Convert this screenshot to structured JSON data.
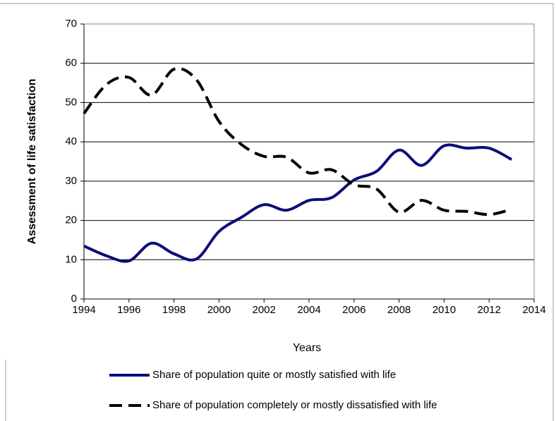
{
  "chart_data": {
    "type": "line",
    "x_label": "Years",
    "y_label": "Assessment of life satisfaction",
    "x": [
      1994,
      1995,
      1996,
      1997,
      1998,
      1999,
      2000,
      2001,
      2002,
      2003,
      2004,
      2005,
      2006,
      2007,
      2008,
      2009,
      2010,
      2011,
      2012,
      2013
    ],
    "series": [
      {
        "name": "Share of population quite or mostly satisfied with life",
        "color": "#0d0d7a",
        "dash": false,
        "values": [
          13.5,
          11,
          9.7,
          14.2,
          11.5,
          10.2,
          17.2,
          20.8,
          24,
          22.6,
          25.1,
          25.8,
          30.3,
          32.5,
          37.9,
          34,
          39,
          38.4,
          38.4,
          35.5
        ]
      },
      {
        "name": "Share of population completely or mostly dissatisfied with life",
        "color": "#000000",
        "dash": true,
        "values": [
          47.2,
          54.6,
          56.4,
          51.9,
          58.5,
          55.8,
          45.2,
          39.3,
          36.3,
          36.1,
          32.1,
          32.9,
          29.1,
          28,
          22.1,
          25.1,
          22.6,
          22.3,
          21.5,
          22.8
        ]
      }
    ],
    "xlim": [
      1994,
      2014
    ],
    "xticks": [
      1994,
      1996,
      1998,
      2000,
      2002,
      2004,
      2006,
      2008,
      2010,
      2012,
      2014
    ],
    "ylim": [
      0,
      70
    ],
    "yticks": [
      0,
      10,
      20,
      30,
      40,
      50,
      60,
      70
    ],
    "grid": true,
    "legend": "bottom"
  }
}
